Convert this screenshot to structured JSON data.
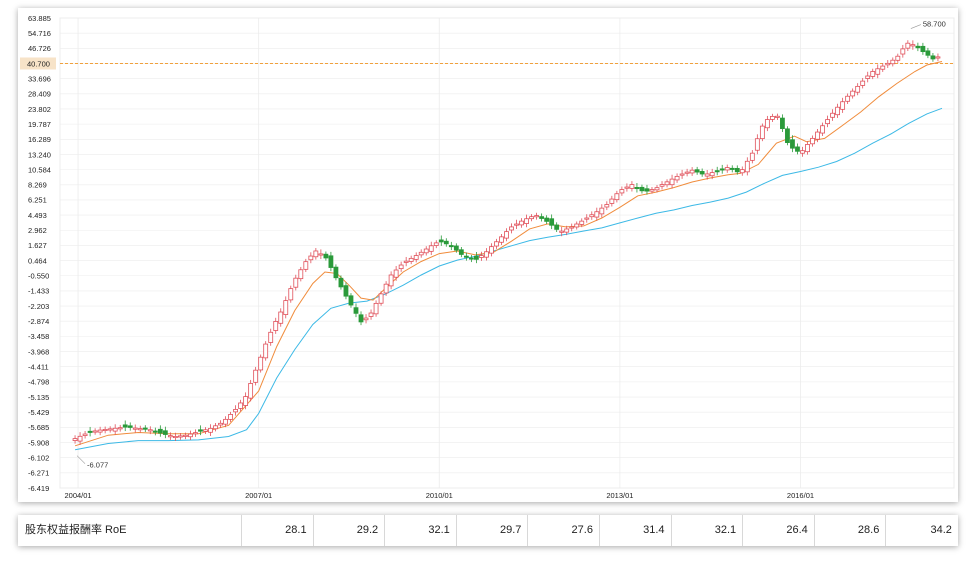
{
  "colors": {
    "up": "#e0505a",
    "down": "#2a9a3a",
    "ma_short": "#f08c3c",
    "ma_long": "#3cb9e6",
    "highlight_line": "#f0a03c",
    "highlight_label_bg": "#f7e3c8",
    "highlight_label_text": "#e0505a",
    "grid": "#ececec"
  },
  "chart_data": {
    "type": "candlestick",
    "y_ticks": [
      "63.885",
      "54.716",
      "46.726",
      "40.700",
      "33.696",
      "28.409",
      "23.802",
      "19.787",
      "16.289",
      "13.240",
      "10.584",
      "8.269",
      "6.251",
      "4.493",
      "2.962",
      "1.627",
      "0.464",
      "-0.550",
      "-1.433",
      "-2.203",
      "-2.874",
      "-3.458",
      "-3.968",
      "-4.411",
      "-4.798",
      "-5.135",
      "-5.429",
      "-5.685",
      "-5.908",
      "-6.102",
      "-6.271",
      "-6.419"
    ],
    "highlight_value": "40.700",
    "x_ticks": [
      "2004/01",
      "2007/01",
      "2010/01",
      "2013/01",
      "2016/01"
    ],
    "x_tick_values": [
      2004,
      2007,
      2010,
      2013,
      2016
    ],
    "annotations": {
      "max_label": "58.700",
      "min_label": "-6.077"
    },
    "close_series": [
      [
        2003.95,
        -5.85
      ],
      [
        2004.2,
        -5.75
      ],
      [
        2004.4,
        -5.72
      ],
      [
        2004.6,
        -5.7
      ],
      [
        2004.8,
        -5.68
      ],
      [
        2005.0,
        -5.7
      ],
      [
        2005.2,
        -5.72
      ],
      [
        2005.4,
        -5.78
      ],
      [
        2005.6,
        -5.82
      ],
      [
        2005.8,
        -5.8
      ],
      [
        2006.0,
        -5.75
      ],
      [
        2006.2,
        -5.7
      ],
      [
        2006.4,
        -5.6
      ],
      [
        2006.6,
        -5.4
      ],
      [
        2006.8,
        -5.1
      ],
      [
        2007.0,
        -4.3
      ],
      [
        2007.2,
        -3.3
      ],
      [
        2007.4,
        -2.3
      ],
      [
        2007.6,
        -0.8
      ],
      [
        2007.8,
        0.5
      ],
      [
        2007.95,
        1.2
      ],
      [
        2008.1,
        0.8
      ],
      [
        2008.3,
        -0.8
      ],
      [
        2008.5,
        -2.0
      ],
      [
        2008.7,
        -2.9
      ],
      [
        2008.85,
        -2.6
      ],
      [
        2009.0,
        -1.8
      ],
      [
        2009.2,
        -0.5
      ],
      [
        2009.4,
        0.3
      ],
      [
        2009.6,
        0.8
      ],
      [
        2009.8,
        1.4
      ],
      [
        2010.0,
        2.0
      ],
      [
        2010.2,
        1.6
      ],
      [
        2010.4,
        0.8
      ],
      [
        2010.6,
        0.5
      ],
      [
        2010.8,
        1.2
      ],
      [
        2011.0,
        2.2
      ],
      [
        2011.2,
        3.3
      ],
      [
        2011.4,
        4.0
      ],
      [
        2011.6,
        4.5
      ],
      [
        2011.8,
        3.8
      ],
      [
        2012.0,
        2.8
      ],
      [
        2012.2,
        3.3
      ],
      [
        2012.4,
        4.0
      ],
      [
        2012.6,
        4.8
      ],
      [
        2012.8,
        5.8
      ],
      [
        2013.0,
        7.5
      ],
      [
        2013.2,
        8.3
      ],
      [
        2013.4,
        7.3
      ],
      [
        2013.6,
        7.8
      ],
      [
        2013.8,
        8.8
      ],
      [
        2014.0,
        9.8
      ],
      [
        2014.2,
        10.5
      ],
      [
        2014.4,
        9.8
      ],
      [
        2014.6,
        10.3
      ],
      [
        2014.8,
        11.0
      ],
      [
        2015.0,
        10.0
      ],
      [
        2015.2,
        13.5
      ],
      [
        2015.4,
        20.5
      ],
      [
        2015.6,
        22.5
      ],
      [
        2015.8,
        15.0
      ],
      [
        2016.0,
        13.5
      ],
      [
        2016.2,
        16.5
      ],
      [
        2016.4,
        20.0
      ],
      [
        2016.6,
        24.0
      ],
      [
        2016.8,
        28.0
      ],
      [
        2017.0,
        32.0
      ],
      [
        2017.2,
        37.0
      ],
      [
        2017.4,
        40.0
      ],
      [
        2017.6,
        43.0
      ],
      [
        2017.8,
        50.0
      ],
      [
        2018.0,
        46.0
      ],
      [
        2018.2,
        42.5
      ],
      [
        2018.35,
        44.0
      ]
    ],
    "ma_short": [
      [
        2003.95,
        -5.95
      ],
      [
        2004.5,
        -5.8
      ],
      [
        2005.0,
        -5.76
      ],
      [
        2005.5,
        -5.78
      ],
      [
        2006.0,
        -5.78
      ],
      [
        2006.5,
        -5.65
      ],
      [
        2007.0,
        -5.0
      ],
      [
        2007.3,
        -3.8
      ],
      [
        2007.6,
        -2.4
      ],
      [
        2007.9,
        -1.0
      ],
      [
        2008.1,
        -0.3
      ],
      [
        2008.3,
        -0.4
      ],
      [
        2008.5,
        -1.1
      ],
      [
        2008.7,
        -1.8
      ],
      [
        2008.9,
        -1.9
      ],
      [
        2009.1,
        -1.3
      ],
      [
        2009.4,
        -0.3
      ],
      [
        2009.7,
        0.4
      ],
      [
        2010.0,
        1.0
      ],
      [
        2010.3,
        1.2
      ],
      [
        2010.6,
        0.9
      ],
      [
        2010.9,
        1.1
      ],
      [
        2011.2,
        2.0
      ],
      [
        2011.5,
        3.1
      ],
      [
        2011.8,
        3.6
      ],
      [
        2012.1,
        3.3
      ],
      [
        2012.4,
        3.4
      ],
      [
        2012.7,
        4.2
      ],
      [
        2013.0,
        5.4
      ],
      [
        2013.3,
        6.8
      ],
      [
        2013.6,
        7.3
      ],
      [
        2013.9,
        7.9
      ],
      [
        2014.2,
        8.7
      ],
      [
        2014.5,
        9.3
      ],
      [
        2014.8,
        9.8
      ],
      [
        2015.0,
        10.0
      ],
      [
        2015.3,
        11.5
      ],
      [
        2015.6,
        15.5
      ],
      [
        2015.9,
        17.0
      ],
      [
        2016.1,
        15.8
      ],
      [
        2016.4,
        16.5
      ],
      [
        2016.7,
        19.5
      ],
      [
        2017.0,
        23.0
      ],
      [
        2017.3,
        27.5
      ],
      [
        2017.6,
        32.0
      ],
      [
        2017.9,
        37.0
      ],
      [
        2018.1,
        40.0
      ],
      [
        2018.35,
        41.5
      ]
    ],
    "ma_long": [
      [
        2003.95,
        -6.0
      ],
      [
        2004.5,
        -5.92
      ],
      [
        2005.0,
        -5.88
      ],
      [
        2005.5,
        -5.88
      ],
      [
        2006.0,
        -5.87
      ],
      [
        2006.5,
        -5.82
      ],
      [
        2006.8,
        -5.72
      ],
      [
        2007.0,
        -5.45
      ],
      [
        2007.3,
        -4.7
      ],
      [
        2007.6,
        -3.9
      ],
      [
        2007.9,
        -3.0
      ],
      [
        2008.2,
        -2.3
      ],
      [
        2008.5,
        -2.05
      ],
      [
        2008.8,
        -1.95
      ],
      [
        2009.1,
        -1.6
      ],
      [
        2009.4,
        -1.1
      ],
      [
        2009.7,
        -0.5
      ],
      [
        2010.0,
        0.1
      ],
      [
        2010.3,
        0.5
      ],
      [
        2010.6,
        0.8
      ],
      [
        2010.9,
        1.2
      ],
      [
        2011.2,
        1.6
      ],
      [
        2011.5,
        2.05
      ],
      [
        2011.8,
        2.35
      ],
      [
        2012.1,
        2.6
      ],
      [
        2012.4,
        2.9
      ],
      [
        2012.7,
        3.2
      ],
      [
        2013.0,
        3.7
      ],
      [
        2013.3,
        4.2
      ],
      [
        2013.6,
        4.7
      ],
      [
        2013.9,
        5.1
      ],
      [
        2014.2,
        5.6
      ],
      [
        2014.5,
        6.0
      ],
      [
        2014.8,
        6.5
      ],
      [
        2015.1,
        7.3
      ],
      [
        2015.4,
        8.5
      ],
      [
        2015.7,
        9.7
      ],
      [
        2016.0,
        10.3
      ],
      [
        2016.3,
        11.0
      ],
      [
        2016.6,
        12.0
      ],
      [
        2016.9,
        13.5
      ],
      [
        2017.2,
        15.5
      ],
      [
        2017.5,
        17.5
      ],
      [
        2017.8,
        20.0
      ],
      [
        2018.1,
        22.5
      ],
      [
        2018.35,
        24.0
      ]
    ]
  },
  "table": {
    "label": "股东权益报酬率 RoE",
    "values": [
      "28.1",
      "29.2",
      "32.1",
      "29.7",
      "27.6",
      "31.4",
      "32.1",
      "26.4",
      "28.6",
      "34.2"
    ]
  }
}
